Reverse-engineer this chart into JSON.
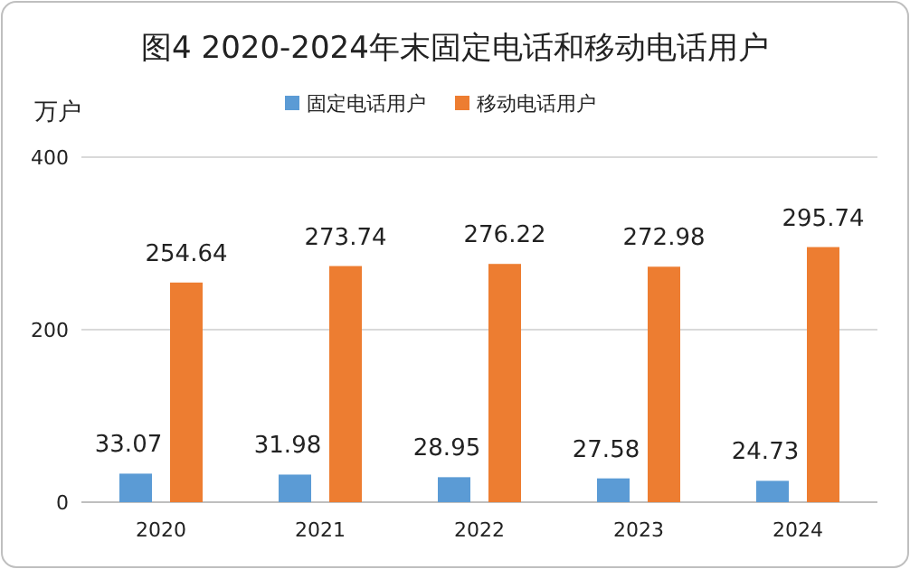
{
  "chart_data": {
    "type": "bar",
    "title": "图4  2020-2024年末固定电话和移动电话用户",
    "ylabel": "万户",
    "categories": [
      "2020",
      "2021",
      "2022",
      "2023",
      "2024"
    ],
    "series": [
      {
        "name": "固定电话用户",
        "color": "#5b9bd5",
        "values": [
          33.07,
          31.98,
          28.95,
          27.58,
          24.73
        ]
      },
      {
        "name": "移动电话用户",
        "color": "#ed7d31",
        "values": [
          254.64,
          273.74,
          276.22,
          272.98,
          295.74
        ]
      }
    ],
    "ylim": [
      0,
      400
    ],
    "yticks": [
      0,
      200,
      400
    ],
    "grid": "y",
    "legend": "top",
    "data_labels": true
  }
}
